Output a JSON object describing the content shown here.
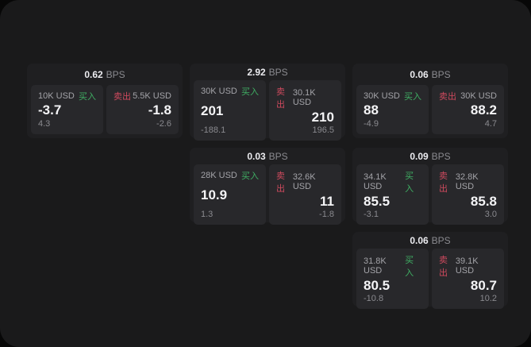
{
  "labels": {
    "bps_unit": "BPS",
    "buy": "买入",
    "sell": "卖出"
  },
  "colors": {
    "buy_green": "#3fae63",
    "sell_red": "#cf4a5e",
    "surface_bg": "#1a1a1b",
    "card_bg": "#1f1f21",
    "panel_bg": "#28282b",
    "outer_bg": "#070707"
  },
  "cards": [
    {
      "bps": "0.62",
      "buy": {
        "size": "10K USD",
        "price": "-3.7",
        "delta": "4.3"
      },
      "sell": {
        "size": "5.5K USD",
        "price": "-1.8",
        "delta": "-2.6"
      }
    },
    {
      "bps": "2.92",
      "buy": {
        "size": "30K USD",
        "price": "201",
        "delta": "-188.1"
      },
      "sell": {
        "size": "30.1K USD",
        "price": "210",
        "delta": "196.5"
      }
    },
    {
      "bps": "0.06",
      "buy": {
        "size": "30K USD",
        "price": "88",
        "delta": "-4.9"
      },
      "sell": {
        "size": "30K USD",
        "price": "88.2",
        "delta": "4.7"
      }
    },
    {
      "bps": "0.03",
      "buy": {
        "size": "28K USD",
        "price": "10.9",
        "delta": "1.3"
      },
      "sell": {
        "size": "32.6K USD",
        "price": "11",
        "delta": "-1.8"
      }
    },
    {
      "bps": "0.09",
      "buy": {
        "size": "34.1K USD",
        "price": "85.5",
        "delta": "-3.1"
      },
      "sell": {
        "size": "32.8K USD",
        "price": "85.8",
        "delta": "3.0"
      }
    },
    {
      "bps": "0.06",
      "buy": {
        "size": "31.8K USD",
        "price": "80.5",
        "delta": "-10.8"
      },
      "sell": {
        "size": "39.1K USD",
        "price": "80.7",
        "delta": "10.2"
      }
    }
  ]
}
